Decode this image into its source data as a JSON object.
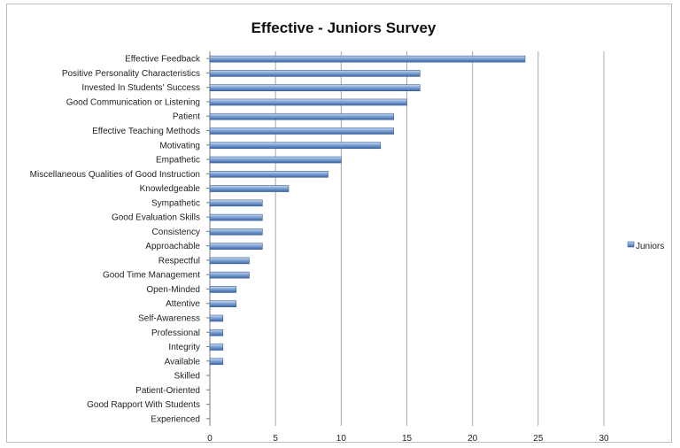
{
  "chart_data": {
    "type": "bar",
    "orientation": "horizontal",
    "title": "Effective - Juniors Survey",
    "xlabel": "",
    "ylabel": "",
    "xlim": [
      0,
      30
    ],
    "x_ticks": [
      "0",
      "5",
      "10",
      "15",
      "20",
      "25",
      "30"
    ],
    "grid": "vertical",
    "legend_position": "right",
    "categories": [
      "Effective Feedback",
      "Positive Personality Characteristics",
      "Invested In Students' Success",
      "Good Communication or Listening",
      "Patient",
      "Effective Teaching Methods",
      "Motivating",
      "Empathetic",
      "Miscellaneous Qualities of Good Instruction",
      "Knowledgeable",
      "Sympathetic",
      "Good Evaluation Skills",
      "Consistency",
      "Approachable",
      "Respectful",
      "Good Time Management",
      "Open-Minded",
      "Attentive",
      "Self-Awareness",
      "Professional",
      "Integrity",
      "Available",
      "Skilled",
      "Patient-Oriented",
      "Good Rapport With Students",
      "Experienced"
    ],
    "series": [
      {
        "name": "Juniors",
        "color": "#4a7ab8",
        "values": [
          24,
          16,
          16,
          15,
          14,
          14,
          13,
          10,
          9,
          6,
          4,
          4,
          4,
          4,
          3,
          3,
          2,
          2,
          1,
          1,
          1,
          1,
          0,
          0,
          0,
          0
        ]
      }
    ]
  }
}
